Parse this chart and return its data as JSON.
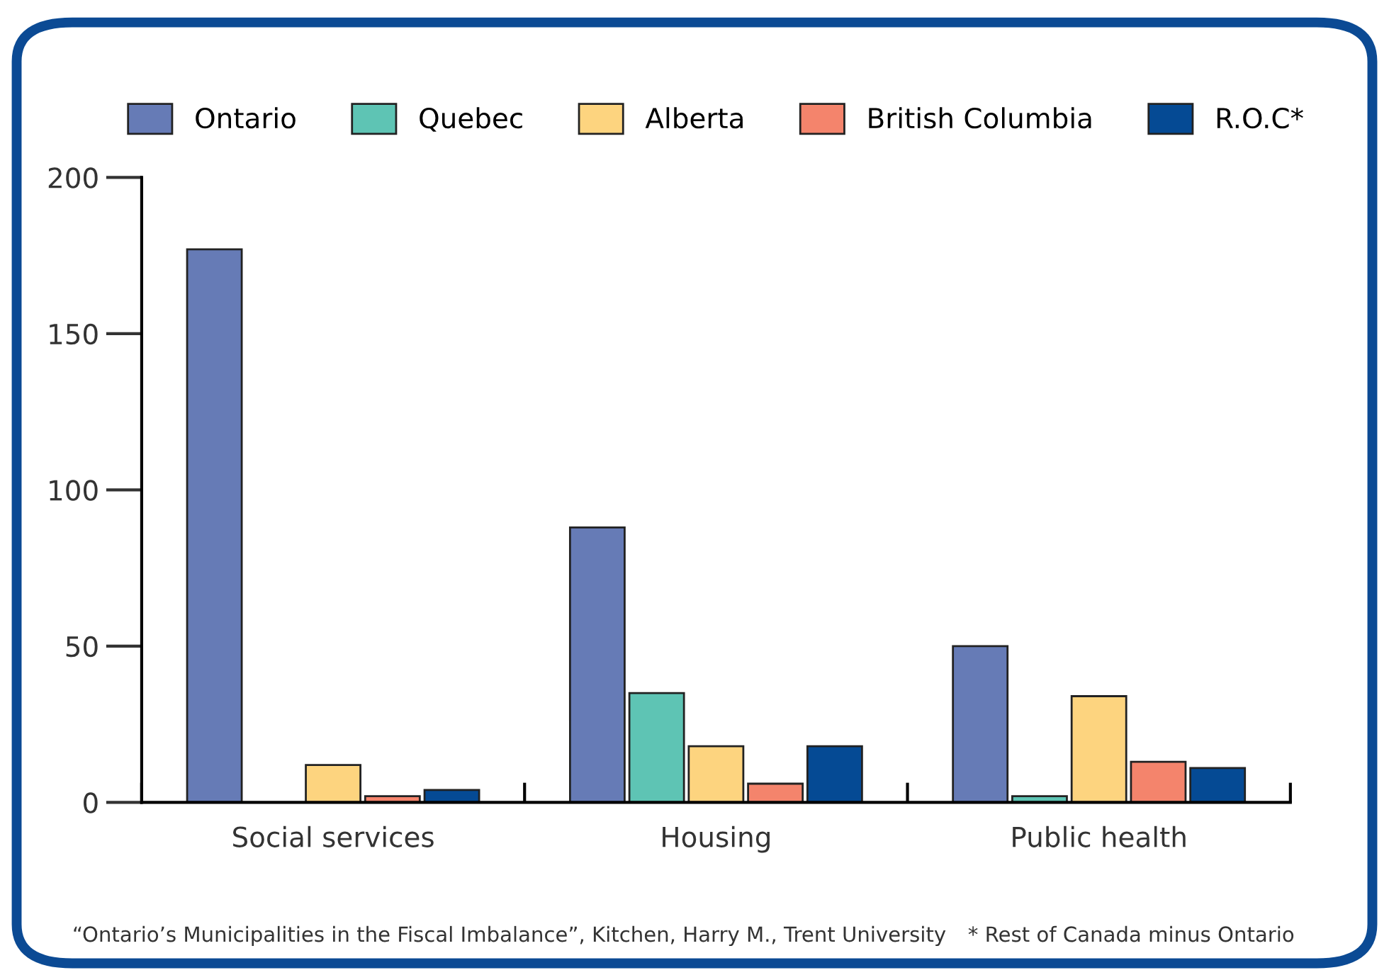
{
  "chart_data": {
    "type": "bar",
    "categories": [
      "Social services",
      "Housing",
      "Public health"
    ],
    "series": [
      {
        "name": "Ontario",
        "color": "#667bb6",
        "values": [
          177,
          88,
          50
        ]
      },
      {
        "name": "Quebec",
        "color": "#5ec4b4",
        "values": [
          null,
          35,
          2
        ]
      },
      {
        "name": "Alberta",
        "color": "#fdd47f",
        "values": [
          12,
          18,
          34
        ]
      },
      {
        "name": "British Columbia",
        "color": "#f4846c",
        "values": [
          2,
          6,
          13
        ]
      },
      {
        "name": "R.O.C*",
        "color": "#054a94",
        "values": [
          4,
          18,
          11
        ]
      }
    ],
    "ylim": [
      0,
      200
    ],
    "yticks": [
      0,
      50,
      100,
      150,
      200
    ],
    "grid": false,
    "legend": "top",
    "annotations": [
      "“Ontario’s Municipalities in the Fiscal Imbalance”, Kitchen, Harry M., Trent University",
      "* Rest of Canada minus Ontario"
    ]
  }
}
